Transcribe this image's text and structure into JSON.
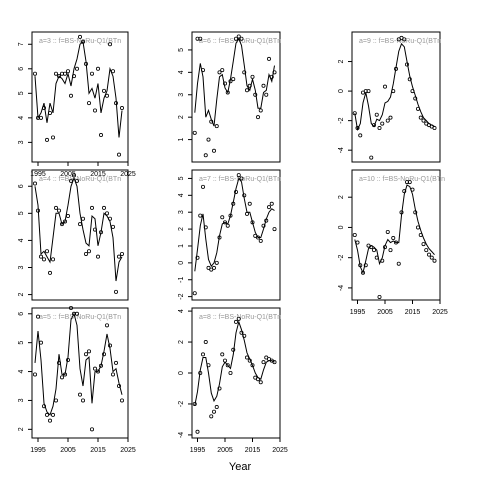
{
  "xlabel": "Year",
  "chart_data": [
    {
      "type": "scatter",
      "title": "a=3 :: f=BS-NoRu-Q1(BTn",
      "xlim": [
        1993,
        2025
      ],
      "ylim": [
        2.2,
        7.5
      ],
      "yticks": [
        3,
        4,
        5,
        6,
        7
      ],
      "xticks": [
        1995,
        2005,
        2015,
        2025
      ],
      "show_xticks": true,
      "x": [
        1994,
        1995,
        1996,
        1997,
        1998,
        1999,
        2000,
        2001,
        2002,
        2003,
        2004,
        2005,
        2006,
        2007,
        2008,
        2009,
        2010,
        2011,
        2012,
        2013,
        2014,
        2015,
        2016,
        2017,
        2018,
        2019,
        2020,
        2021,
        2022,
        2023
      ],
      "points": [
        5.8,
        4.0,
        4.0,
        4.4,
        3.1,
        4.2,
        3.2,
        5.8,
        5.7,
        5.8,
        5.8,
        5.9,
        4.9,
        5.7,
        6.0,
        7.3,
        7.1,
        6.2,
        4.6,
        5.8,
        4.3,
        6.0,
        3.3,
        5.1,
        4.9,
        7.0,
        5.9,
        4.6,
        2.5,
        4.4
      ],
      "fit": [
        5.7,
        4.0,
        4.2,
        4.6,
        3.8,
        4.6,
        4.2,
        5.4,
        5.7,
        5.6,
        5.4,
        5.8,
        5.3,
        6.0,
        6.4,
        7.0,
        7.1,
        6.3,
        5.0,
        5.2,
        4.8,
        5.4,
        4.2,
        4.8,
        5.1,
        6.0,
        5.7,
        4.8,
        3.2,
        4.3
      ]
    },
    {
      "type": "scatter",
      "title": "a=6 :: f=BS-NoRu-Q1(BTn",
      "xlim": [
        1993,
        2025
      ],
      "ylim": [
        0,
        5.8
      ],
      "yticks": [
        1,
        2,
        3,
        4,
        5
      ],
      "xticks": [
        1995,
        2005,
        2015,
        2025
      ],
      "show_xticks": false,
      "x": [
        1994,
        1995,
        1996,
        1997,
        1998,
        1999,
        2000,
        2001,
        2002,
        2003,
        2004,
        2005,
        2006,
        2007,
        2008,
        2009,
        2010,
        2011,
        2012,
        2013,
        2014,
        2015,
        2016,
        2017,
        2018,
        2019,
        2020,
        2021,
        2022,
        2023
      ],
      "points": [
        1.3,
        5.5,
        5.5,
        4.1,
        0.3,
        1.0,
        1.8,
        0.5,
        1.6,
        4.0,
        4.1,
        3.5,
        3.1,
        3.6,
        3.7,
        5.5,
        5.6,
        5.5,
        4.0,
        3.2,
        3.4,
        3.8,
        3.0,
        2.0,
        2.3,
        3.4,
        3.0,
        4.6,
        3.8,
        4.0
      ],
      "fit": [
        2.2,
        3.5,
        4.4,
        3.8,
        2.0,
        2.3,
        1.9,
        1.6,
        2.8,
        3.8,
        3.9,
        3.3,
        3.1,
        3.7,
        4.5,
        5.3,
        5.5,
        5.2,
        4.3,
        3.4,
        3.2,
        3.7,
        3.2,
        2.4,
        2.4,
        3.1,
        3.2,
        3.9,
        3.6,
        4.3
      ]
    },
    {
      "type": "scatter",
      "title": "a=9 :: f=BS-NoRu-Q1(BTn",
      "xlim": [
        1993,
        2025
      ],
      "ylim": [
        -4.8,
        4.0
      ],
      "yticks": [
        -4,
        -2,
        0,
        2
      ],
      "xticks": [
        1995,
        2005,
        2015,
        2025
      ],
      "show_xticks": false,
      "x": [
        1994,
        1995,
        1996,
        1997,
        1998,
        1999,
        2000,
        2001,
        2002,
        2003,
        2004,
        2005,
        2006,
        2007,
        2008,
        2009,
        2010,
        2011,
        2012,
        2013,
        2014,
        2015,
        2016,
        2017,
        2018,
        2019,
        2020,
        2021,
        2022,
        2023
      ],
      "points": [
        -1.5,
        -2.5,
        -3.0,
        -0.1,
        0.0,
        0.0,
        -4.5,
        -2.3,
        -1.6,
        -2.5,
        -2.2,
        0.3,
        -2.0,
        -1.8,
        0.0,
        1.5,
        3.5,
        3.6,
        3.5,
        1.8,
        0.8,
        0.0,
        -0.5,
        -1.2,
        -1.8,
        -2.0,
        -2.2,
        -2.3,
        -2.4,
        -2.5
      ],
      "fit": [
        -1.5,
        -2.6,
        -2.2,
        -0.8,
        -0.1,
        -1.0,
        -2.2,
        -2.4,
        -1.9,
        -2.0,
        -1.6,
        -0.8,
        -0.7,
        -0.4,
        0.5,
        1.6,
        2.7,
        3.2,
        3.0,
        2.0,
        1.0,
        0.3,
        -0.3,
        -0.9,
        -1.4,
        -1.8,
        -2.0,
        -2.2,
        -2.3,
        -2.4
      ]
    },
    {
      "type": "scatter",
      "title": "a=4 :: f=BS-NoRu-Q1(BTn",
      "xlim": [
        1993,
        2025
      ],
      "ylim": [
        1.8,
        6.6
      ],
      "yticks": [
        2,
        3,
        4,
        5,
        6
      ],
      "xticks": [
        1995,
        2005,
        2015,
        2025
      ],
      "show_xticks": false,
      "x": [
        1994,
        1995,
        1996,
        1997,
        1998,
        1999,
        2000,
        2001,
        2002,
        2003,
        2004,
        2005,
        2006,
        2007,
        2008,
        2009,
        2010,
        2011,
        2012,
        2013,
        2014,
        2015,
        2016,
        2017,
        2018,
        2019,
        2020,
        2021,
        2022,
        2023
      ],
      "points": [
        6.1,
        5.1,
        3.4,
        3.3,
        3.6,
        2.8,
        3.3,
        5.2,
        5.1,
        4.6,
        4.7,
        4.9,
        6.2,
        6.4,
        6.2,
        4.6,
        4.8,
        3.5,
        3.6,
        5.2,
        4.4,
        3.4,
        4.3,
        5.2,
        5.0,
        4.8,
        4.5,
        2.1,
        3.4,
        3.5
      ],
      "fit": [
        6.0,
        5.3,
        3.5,
        3.6,
        3.4,
        3.2,
        4.1,
        5.0,
        5.0,
        4.6,
        4.7,
        5.3,
        6.0,
        6.3,
        6.0,
        5.0,
        4.4,
        3.9,
        3.8,
        4.9,
        4.8,
        3.8,
        4.3,
        5.0,
        4.9,
        4.7,
        4.1,
        2.5,
        3.2,
        3.4
      ]
    },
    {
      "type": "scatter",
      "title": "a=7 :: f=BS-NoRu-Q1(BTn",
      "xlim": [
        1993,
        2025
      ],
      "ylim": [
        -2.2,
        5.5
      ],
      "yticks": [
        -2,
        -1,
        0,
        1,
        2,
        3,
        4,
        5
      ],
      "xticks": [
        1995,
        2005,
        2015,
        2025
      ],
      "show_xticks": false,
      "x": [
        1994,
        1995,
        1996,
        1997,
        1998,
        1999,
        2000,
        2001,
        2002,
        2003,
        2004,
        2005,
        2006,
        2007,
        2008,
        2009,
        2010,
        2011,
        2012,
        2013,
        2014,
        2015,
        2016,
        2017,
        2018,
        2019,
        2020,
        2021,
        2022,
        2023
      ],
      "points": [
        -1.8,
        0.3,
        2.8,
        4.5,
        2.1,
        -0.3,
        -0.4,
        -0.3,
        0.0,
        1.5,
        2.7,
        2.4,
        2.2,
        2.8,
        3.5,
        4.2,
        5.2,
        5.0,
        4.0,
        2.9,
        3.5,
        2.4,
        1.6,
        1.5,
        1.3,
        2.2,
        2.5,
        3.3,
        3.5,
        2.0
      ],
      "fit": [
        -0.5,
        0.8,
        2.2,
        2.9,
        1.4,
        0.2,
        -0.2,
        0.0,
        0.6,
        1.6,
        2.3,
        2.4,
        2.3,
        2.8,
        3.6,
        4.4,
        5.0,
        4.8,
        3.8,
        3.0,
        3.0,
        2.4,
        1.8,
        1.5,
        1.5,
        2.0,
        2.6,
        3.0,
        3.2,
        3.1
      ]
    },
    {
      "type": "scatter",
      "title": "a=10 :: f=BS-NoRu-Q1(BTn",
      "xlim": [
        1993,
        2025
      ],
      "ylim": [
        -4.8,
        3.8
      ],
      "yticks": [
        -4,
        -2,
        0,
        2
      ],
      "xticks": [
        1995,
        2005,
        2015,
        2025
      ],
      "show_xticks": true,
      "x": [
        1994,
        1995,
        1996,
        1997,
        1998,
        1999,
        2000,
        2001,
        2002,
        2003,
        2004,
        2005,
        2006,
        2007,
        2008,
        2009,
        2010,
        2011,
        2012,
        2013,
        2014,
        2015,
        2016,
        2017,
        2018,
        2019,
        2020,
        2021,
        2022,
        2023
      ],
      "points": [
        -0.5,
        -1.0,
        -2.5,
        -3.0,
        -2.5,
        -1.2,
        -1.3,
        -1.5,
        -2.0,
        -4.6,
        -2.2,
        -1.3,
        -0.3,
        -1.5,
        -0.7,
        -1.0,
        -2.4,
        1.0,
        2.4,
        3.0,
        3.0,
        2.5,
        1.0,
        0.0,
        -0.5,
        -1.1,
        -1.5,
        -1.8,
        -2.0,
        -2.2
      ],
      "fit": [
        -0.8,
        -1.5,
        -2.6,
        -3.0,
        -2.2,
        -1.4,
        -1.2,
        -1.3,
        -1.5,
        -2.4,
        -2.0,
        -1.2,
        -0.8,
        -1.0,
        -0.9,
        -1.0,
        -1.0,
        0.8,
        2.2,
        2.8,
        2.7,
        2.2,
        1.2,
        0.4,
        -0.2,
        -0.7,
        -1.1,
        -1.4,
        -1.6,
        -1.8
      ]
    },
    {
      "type": "scatter",
      "title": "a=5 :: f=BS-NoRu-Q1(BTn",
      "xlim": [
        1993,
        2025
      ],
      "ylim": [
        1.7,
        6.2
      ],
      "yticks": [
        2,
        3,
        4,
        5,
        6
      ],
      "xticks": [
        1995,
        2005,
        2015,
        2025
      ],
      "show_xticks": true,
      "x": [
        1994,
        1995,
        1996,
        1997,
        1998,
        1999,
        2000,
        2001,
        2002,
        2003,
        2004,
        2005,
        2006,
        2007,
        2008,
        2009,
        2010,
        2011,
        2012,
        2013,
        2014,
        2015,
        2016,
        2017,
        2018,
        2019,
        2020,
        2021,
        2022,
        2023
      ],
      "points": [
        3.9,
        5.9,
        5.0,
        2.8,
        2.5,
        2.3,
        2.5,
        3.0,
        4.3,
        3.8,
        3.9,
        4.4,
        6.2,
        6.0,
        6.0,
        3.2,
        3.0,
        4.6,
        4.7,
        2.0,
        4.1,
        4.0,
        4.2,
        4.6,
        5.6,
        4.9,
        3.9,
        4.3,
        3.5,
        3.0
      ],
      "fit": [
        4.3,
        5.4,
        4.4,
        2.9,
        2.6,
        2.5,
        2.8,
        3.4,
        4.6,
        3.9,
        3.9,
        4.5,
        5.8,
        6.0,
        5.6,
        4.1,
        3.5,
        4.4,
        4.5,
        2.9,
        4.0,
        4.0,
        4.2,
        4.7,
        5.3,
        4.8,
        4.0,
        4.1,
        3.6,
        3.2
      ]
    },
    {
      "type": "scatter",
      "title": "a=8 :: f=BS-NoRu-Q1(BTn",
      "xlim": [
        1993,
        2025
      ],
      "ylim": [
        -4.2,
        4.2
      ],
      "yticks": [
        -4,
        -2,
        0,
        2,
        4
      ],
      "xticks": [
        1995,
        2005,
        2015,
        2025
      ],
      "show_xticks": true,
      "x": [
        1994,
        1995,
        1996,
        1997,
        1998,
        1999,
        2000,
        2001,
        2002,
        2003,
        2004,
        2005,
        2006,
        2007,
        2008,
        2009,
        2010,
        2011,
        2012,
        2013,
        2014,
        2015,
        2016,
        2017,
        2018,
        2019,
        2020,
        2021,
        2022,
        2023
      ],
      "points": [
        -2.0,
        -3.8,
        0.0,
        1.2,
        2.0,
        0.5,
        -2.8,
        -2.5,
        -2.2,
        -1.0,
        1.2,
        0.8,
        0.5,
        0.0,
        1.5,
        3.3,
        3.5,
        2.6,
        2.4,
        1.0,
        0.8,
        0.5,
        -0.3,
        -0.4,
        -0.6,
        0.7,
        1.0,
        0.9,
        0.8,
        0.7
      ],
      "fit": [
        -2.1,
        -1.2,
        0.2,
        1.0,
        1.0,
        0.0,
        -1.3,
        -1.8,
        -1.5,
        -0.7,
        0.4,
        0.7,
        0.5,
        0.3,
        1.2,
        2.6,
        3.3,
        2.8,
        2.1,
        1.3,
        0.9,
        0.5,
        0.0,
        -0.3,
        -0.4,
        0.2,
        0.7,
        0.8,
        0.8,
        0.7
      ]
    }
  ]
}
